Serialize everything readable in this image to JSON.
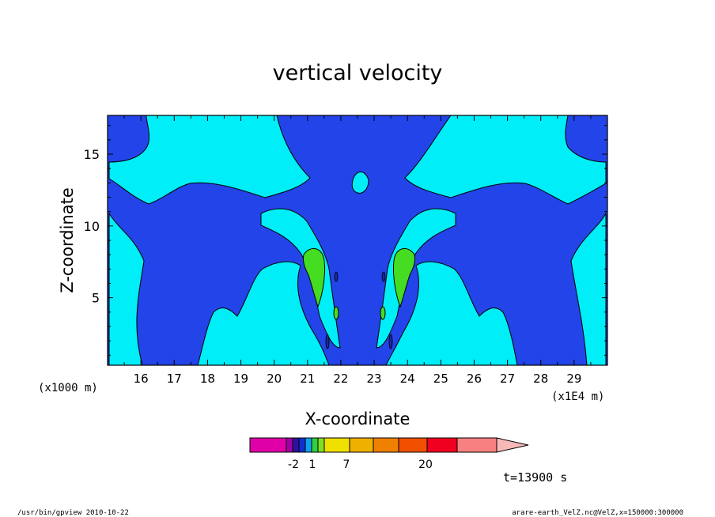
{
  "chart_data": {
    "type": "heatmap",
    "title": "vertical velocity",
    "xlabel": "X-coordinate",
    "ylabel": "Z-coordinate",
    "x_unit_label": "(x1E4 m)",
    "z_unit_label": "(x1000 m)",
    "x_ticks": [
      "16",
      "17",
      "18",
      "19",
      "20",
      "21",
      "22",
      "23",
      "24",
      "25",
      "26",
      "27",
      "28",
      "29"
    ],
    "y_ticks": [
      "5",
      "10",
      "15"
    ],
    "xlim": [
      15.0,
      30.0
    ],
    "ylim": [
      0.3,
      17.7
    ],
    "colorbar": {
      "colors": [
        "#e000a8",
        "#a000a8",
        "#3010a0",
        "#1030d0",
        "#10a0f0",
        "#30d040",
        "#80e020",
        "#f0e000",
        "#f0b000",
        "#f08000",
        "#f05000",
        "#f00020",
        "#f88080",
        "#f8b8b8"
      ],
      "tick_labels": [
        "-2",
        "1",
        "7",
        "20"
      ]
    },
    "field_colors": {
      "neg": "#2244e8",
      "low": "#00eef8",
      "mid": "#44dd22",
      "strong": "#1a2a9a"
    },
    "time_label": "t=13900 s",
    "footer_left": "/usr/bin/gpview  2010-10-22",
    "footer_right": "arare-earth_VelZ.nc@VelZ,x=150000:300000"
  }
}
